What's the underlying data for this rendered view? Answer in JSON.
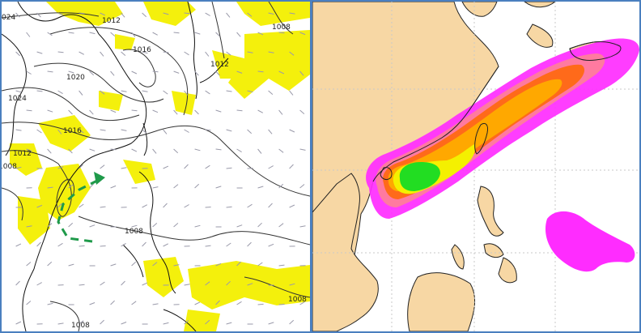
{
  "left_map": {
    "isobar_labels": [
      "024",
      "1012",
      "1016",
      "1020",
      "1024",
      "1016",
      "1012",
      "1008",
      "1012",
      "1008",
      "1008",
      "1008",
      "1008"
    ],
    "colors": {
      "precip": "#f4f000",
      "isobar": "#333333",
      "wind_barb": "#9a9aaa",
      "arrow": "#1f9a4a"
    }
  },
  "right_map": {
    "colors": {
      "land": "#f7d7a4",
      "sea": "#ffffff",
      "grid": "#c8c8c8",
      "band_magenta": "#ff2cff",
      "band_pink": "#ff7aa0",
      "band_orange_red": "#ff6a1a",
      "band_orange": "#ffa800",
      "band_yellow": "#f4f000",
      "band_green": "#22dd22"
    }
  }
}
